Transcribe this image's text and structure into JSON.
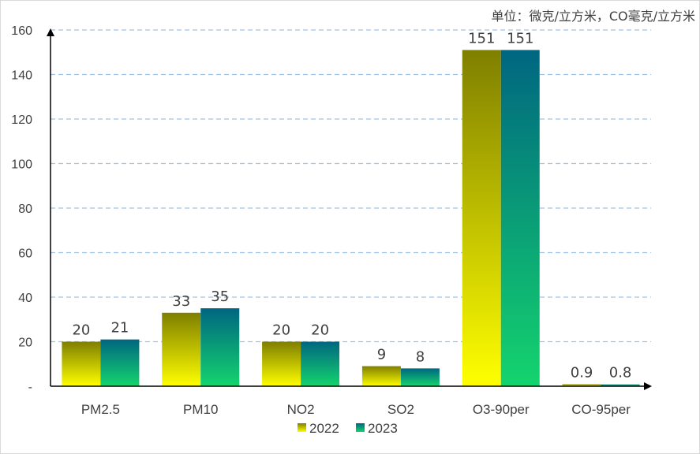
{
  "chart_data": {
    "type": "bar",
    "unit_note": "单位：微克/立方米，CO毫克/立方米",
    "categories": [
      "PM2.5",
      "PM10",
      "NO2",
      "SO2",
      "O3-90per",
      "CO-95per"
    ],
    "series": [
      {
        "name": "2022",
        "values": [
          20,
          33,
          20,
          9,
          151,
          0.9
        ],
        "labels": [
          "20",
          "33",
          "20",
          "9",
          "151",
          "0.9"
        ]
      },
      {
        "name": "2023",
        "values": [
          21,
          35,
          20,
          8,
          151,
          0.8
        ],
        "labels": [
          "21",
          "35",
          "20",
          "8",
          "151",
          "0.8"
        ]
      }
    ],
    "ylim": [
      0,
      160
    ],
    "yticks": [
      0,
      20,
      40,
      60,
      80,
      100,
      120,
      140,
      160
    ],
    "ytick_labels": [
      "-",
      "20",
      "40",
      "60",
      "80",
      "100",
      "120",
      "140",
      "160"
    ],
    "grid": true,
    "legend_position": "bottom-center",
    "colors": {
      "2022": {
        "top": "#7f7f00",
        "bottom": "#ffff00"
      },
      "2023": {
        "top": "#006680",
        "bottom": "#14d46e"
      }
    }
  }
}
